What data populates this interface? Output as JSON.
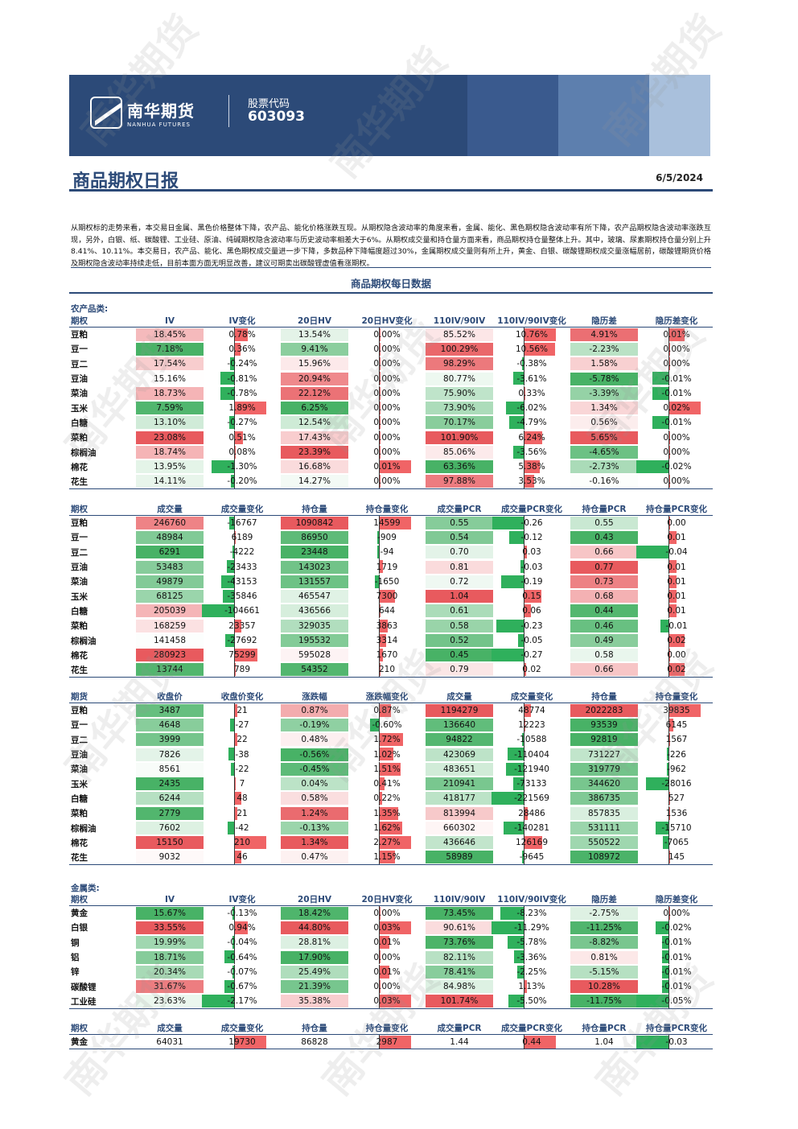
{
  "header": {
    "logo_cn": "南华期货",
    "logo_en": "NANHUA FUTURES",
    "stock_label": "股票代码",
    "stock_code": "603093",
    "title": "商品期权日报",
    "date": "6/5/2024",
    "watermark": "南华期货"
  },
  "summary": "从期权标的走势来看，本交易日金属、黑色价格整体下降，农产品、能化价格涨跌互现。从期权隐含波动率的角度来看，金属、能化、黑色期权隐含波动率有所下降，农产品期权隐含波动率涨跌互现，另外，白银、纸、碳酸锂、工业硅、原油、纯碱期权隐含波动率与历史波动率相差大于6%。从期权成交量和持仓量方面来看，商品期权持仓量整体上升。其中，玻璃、尿素期权持仓量分别上升8.41%、10.11%。本交易日，农产品、能化、黑色期权成交量进一步下降，多数品种下降幅度超过30%，金属期权成交量则有所上升，黄金、白银、碳酸锂期权成交量涨幅居前，碳酸锂期货价格及期权隐含波动率持续走低，目前本面方面无明显改善，建议可期卖出碳酸锂虚值看涨期权。",
  "section_title": "商品期权每日数据",
  "categories": {
    "agri": "农产品类:",
    "metal": "金属类:"
  },
  "tables": {
    "agri_iv": {
      "headers": [
        "期权",
        "IV",
        "IV变化",
        "20日HV",
        "20日HV变化",
        "110IV/90IV",
        "110IV/90IV变化",
        "隐历差",
        "隐历差变化"
      ],
      "rows": [
        [
          "豆粕",
          "18.45%",
          "0.78%",
          "13.54%",
          "0.00%",
          "85.52%",
          "10.76%",
          "4.91%",
          "0.01%"
        ],
        [
          "豆一",
          "7.18%",
          "0.36%",
          "9.41%",
          "0.00%",
          "100.29%",
          "10.56%",
          "-2.23%",
          "0.00%"
        ],
        [
          "豆二",
          "17.54%",
          "-0.24%",
          "15.96%",
          "0.00%",
          "98.29%",
          "-0.38%",
          "1.58%",
          "0.00%"
        ],
        [
          "豆油",
          "15.16%",
          "-0.81%",
          "20.94%",
          "0.00%",
          "80.77%",
          "-3.61%",
          "-5.78%",
          "-0.01%"
        ],
        [
          "菜油",
          "18.73%",
          "-0.78%",
          "22.12%",
          "0.00%",
          "75.90%",
          "0.33%",
          "-3.39%",
          "-0.01%"
        ],
        [
          "玉米",
          "7.59%",
          "1.89%",
          "6.25%",
          "0.00%",
          "73.90%",
          "-6.02%",
          "1.34%",
          "0.02%"
        ],
        [
          "白糖",
          "13.10%",
          "-0.27%",
          "12.54%",
          "0.00%",
          "70.17%",
          "-4.79%",
          "0.56%",
          "-0.01%"
        ],
        [
          "菜粕",
          "23.08%",
          "0.51%",
          "17.43%",
          "0.00%",
          "101.90%",
          "6.24%",
          "5.65%",
          "0.00%"
        ],
        [
          "棕榈油",
          "18.74%",
          "0.08%",
          "23.39%",
          "0.00%",
          "85.06%",
          "-3.56%",
          "-4.65%",
          "0.00%"
        ],
        [
          "棉花",
          "13.95%",
          "-1.30%",
          "16.68%",
          "0.01%",
          "63.36%",
          "5.38%",
          "-2.73%",
          "-0.02%"
        ],
        [
          "花生",
          "14.11%",
          "-0.20%",
          "14.27%",
          "0.00%",
          "97.88%",
          "3.53%",
          "-0.16%",
          "0.00%"
        ]
      ]
    },
    "agri_vol": {
      "headers": [
        "期权",
        "成交量",
        "成交量变化",
        "持仓量",
        "持仓量变化",
        "成交量PCR",
        "成交量PCR变化",
        "持仓量PCR",
        "持仓量PCR变化"
      ],
      "rows": [
        [
          "豆粕",
          "246760",
          "-16767",
          "1090842",
          "14599",
          "0.55",
          "-0.26",
          "0.55",
          "0.00"
        ],
        [
          "豆一",
          "48984",
          "6189",
          "86950",
          "-909",
          "0.54",
          "-0.12",
          "0.43",
          "0.01"
        ],
        [
          "豆二",
          "6291",
          "-4222",
          "23448",
          "-94",
          "0.70",
          "0.03",
          "0.66",
          "-0.04"
        ],
        [
          "豆油",
          "53483",
          "-23433",
          "143023",
          "1719",
          "0.81",
          "-0.03",
          "0.77",
          "0.01"
        ],
        [
          "菜油",
          "49879",
          "-43153",
          "131557",
          "-1650",
          "0.72",
          "-0.19",
          "0.73",
          "0.01"
        ],
        [
          "玉米",
          "68125",
          "-35846",
          "465547",
          "7300",
          "1.04",
          "0.15",
          "0.68",
          "0.01"
        ],
        [
          "白糖",
          "205039",
          "-104661",
          "436566",
          "644",
          "0.61",
          "0.06",
          "0.44",
          "0.01"
        ],
        [
          "菜粕",
          "168259",
          "23357",
          "329035",
          "3863",
          "0.58",
          "-0.23",
          "0.46",
          "-0.01"
        ],
        [
          "棕榈油",
          "141458",
          "-27692",
          "195532",
          "3314",
          "0.52",
          "-0.05",
          "0.49",
          "0.02"
        ],
        [
          "棉花",
          "280923",
          "75299",
          "595028",
          "1670",
          "0.45",
          "-0.27",
          "0.58",
          "0.00"
        ],
        [
          "花生",
          "13744",
          "789",
          "54352",
          "210",
          "0.79",
          "0.02",
          "0.66",
          "0.02"
        ]
      ]
    },
    "agri_fut": {
      "headers": [
        "期货",
        "收盘价",
        "收盘价变化",
        "涨跌幅",
        "涨跌幅变化",
        "成交量",
        "成交量变化",
        "持仓量",
        "持仓量变化"
      ],
      "rows": [
        [
          "豆粕",
          "3487",
          "21",
          "0.87%",
          "0.87%",
          "1194279",
          "48774",
          "2022283",
          "39835"
        ],
        [
          "豆一",
          "4648",
          "-27",
          "-0.19%",
          "-0.60%",
          "136640",
          "12223",
          "93539",
          "6145"
        ],
        [
          "豆二",
          "3999",
          "22",
          "0.48%",
          "1.72%",
          "94822",
          "-10588",
          "92819",
          "1567"
        ],
        [
          "豆油",
          "7826",
          "-38",
          "-0.56%",
          "1.02%",
          "423069",
          "-110404",
          "731227",
          "-226"
        ],
        [
          "菜油",
          "8561",
          "-22",
          "-0.45%",
          "1.51%",
          "483651",
          "-121940",
          "319779",
          "-962"
        ],
        [
          "玉米",
          "2435",
          "7",
          "0.04%",
          "0.41%",
          "210941",
          "-73133",
          "344620",
          "-28016"
        ],
        [
          "白糖",
          "6244",
          "48",
          "0.58%",
          "0.22%",
          "418177",
          "-221569",
          "386735",
          "527"
        ],
        [
          "菜粕",
          "2779",
          "21",
          "1.24%",
          "1.35%",
          "813994",
          "28486",
          "857835",
          "1536"
        ],
        [
          "棕榈油",
          "7602",
          "-42",
          "-0.13%",
          "1.62%",
          "660302",
          "-140281",
          "531111",
          "-15710"
        ],
        [
          "棉花",
          "15150",
          "210",
          "1.34%",
          "2.27%",
          "436646",
          "126169",
          "550522",
          "-7065"
        ],
        [
          "花生",
          "9032",
          "46",
          "0.47%",
          "1.15%",
          "58989",
          "-9645",
          "108972",
          "145"
        ]
      ]
    },
    "metal_iv": {
      "headers": [
        "期权",
        "IV",
        "IV变化",
        "20日HV",
        "20日HV变化",
        "110IV/90IV",
        "110IV/90IV变化",
        "隐历差",
        "隐历差变化"
      ],
      "rows": [
        [
          "黄金",
          "15.67%",
          "-0.13%",
          "18.42%",
          "0.00%",
          "73.45%",
          "-8.23%",
          "-2.75%",
          "0.00%"
        ],
        [
          "白银",
          "33.55%",
          "0.94%",
          "44.80%",
          "0.03%",
          "90.61%",
          "-11.29%",
          "-11.25%",
          "-0.02%"
        ],
        [
          "铜",
          "19.99%",
          "-0.04%",
          "28.81%",
          "0.01%",
          "73.76%",
          "-5.78%",
          "-8.82%",
          "-0.01%"
        ],
        [
          "铝",
          "18.71%",
          "-0.64%",
          "17.90%",
          "0.00%",
          "82.11%",
          "-3.36%",
          "0.81%",
          "-0.01%"
        ],
        [
          "锌",
          "20.34%",
          "-0.07%",
          "25.49%",
          "0.01%",
          "78.41%",
          "-2.25%",
          "-5.15%",
          "-0.01%"
        ],
        [
          "碳酸锂",
          "31.67%",
          "-0.67%",
          "21.39%",
          "0.00%",
          "84.98%",
          "1.13%",
          "10.28%",
          "-0.01%"
        ],
        [
          "工业硅",
          "23.63%",
          "-2.17%",
          "35.38%",
          "0.03%",
          "101.74%",
          "-5.50%",
          "-11.75%",
          "-0.05%"
        ]
      ]
    },
    "metal_vol": {
      "headers": [
        "期权",
        "成交量",
        "成交量变化",
        "持仓量",
        "持仓量变化",
        "成交量PCR",
        "成交量PCR变化",
        "持仓量PCR",
        "持仓量PCR变化"
      ],
      "rows": [
        [
          "黄金",
          "64031",
          "19730",
          "86828",
          "2987",
          "1.44",
          "0.44",
          "1.04",
          "-0.03"
        ]
      ]
    }
  },
  "colors": {
    "navy": "#2c4a78",
    "heat_red": "#e8474c",
    "heat_green": "#3aac5d",
    "bar_red": "#f06466",
    "bar_green": "#2fb05c"
  }
}
